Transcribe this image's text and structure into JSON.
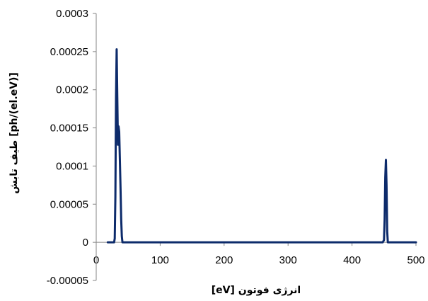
{
  "chart_data": {
    "type": "line",
    "title": "",
    "xlabel": "[eV] انرژی فوتون",
    "ylabel": "طیف تابش [ph/(el.eV)]",
    "xlim": [
      0,
      500
    ],
    "ylim": [
      -5e-05,
      0.0003
    ],
    "x_ticks": [
      0,
      100,
      200,
      300,
      400,
      500
    ],
    "x_tick_labels": [
      "0",
      "100",
      "200",
      "300",
      "400",
      "500"
    ],
    "y_ticks": [
      -5e-05,
      0,
      5e-05,
      0.0001,
      0.00015,
      0.0002,
      0.00025,
      0.0003
    ],
    "y_tick_labels": [
      "-0.00005",
      "0",
      "0.00005",
      "0.0001",
      "0.00015",
      "0.0002",
      "0.00025",
      "0.0003"
    ],
    "grid": false,
    "legend": "none",
    "series": [
      {
        "color": "#0d2b6b",
        "x": [
          18,
          28,
          29,
          30,
          31,
          32,
          33,
          34,
          35,
          36,
          37,
          38,
          39,
          40,
          41,
          42,
          50,
          200,
          300,
          440,
          446,
          448,
          450,
          451,
          452,
          453,
          454,
          455,
          456,
          457,
          460,
          500
        ],
        "y": [
          0,
          0,
          5e-06,
          6e-05,
          0.00019,
          0.000253,
          0.00019,
          0.000128,
          0.000152,
          0.000145,
          0.00011,
          7e-05,
          3e-05,
          8e-06,
          0,
          0,
          0,
          0,
          0,
          0,
          0,
          0,
          3e-06,
          3e-05,
          8.5e-05,
          0.000108,
          7.5e-05,
          1.5e-05,
          0,
          0,
          0,
          0
        ]
      }
    ]
  }
}
